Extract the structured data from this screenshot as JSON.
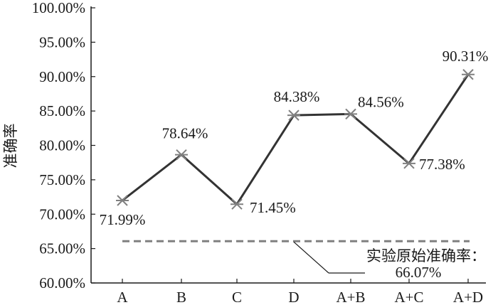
{
  "chart_data": {
    "type": "line",
    "title": "",
    "xlabel": "",
    "ylabel": "准确率",
    "categories": [
      "A",
      "B",
      "C",
      "D",
      "A+B",
      "A+C",
      "A+D"
    ],
    "series": [
      {
        "values": [
          71.99,
          78.64,
          71.45,
          84.38,
          84.56,
          77.38,
          90.31
        ],
        "labels": [
          "71.99%",
          "78.64%",
          "71.45%",
          "84.38%",
          "84.56%",
          "77.38%",
          "90.31%"
        ]
      }
    ],
    "ylim": [
      60,
      100
    ],
    "yticks": [
      60,
      65,
      70,
      75,
      80,
      85,
      90,
      95,
      100
    ],
    "ytick_labels": [
      "60.00%",
      "65.00%",
      "70.00%",
      "75.00%",
      "80.00%",
      "85.00%",
      "90.00%",
      "95.00%",
      "100.00%"
    ],
    "reference_line": {
      "value": 66.07,
      "label_line1": "实验原始准确率：",
      "label_line2": "66.07%",
      "style": "dashed"
    },
    "grid": false,
    "legend": "none",
    "colors": {
      "line": "#333333",
      "marker": "#808080",
      "reference": "#808080",
      "axis": "#1a1a1a"
    }
  }
}
